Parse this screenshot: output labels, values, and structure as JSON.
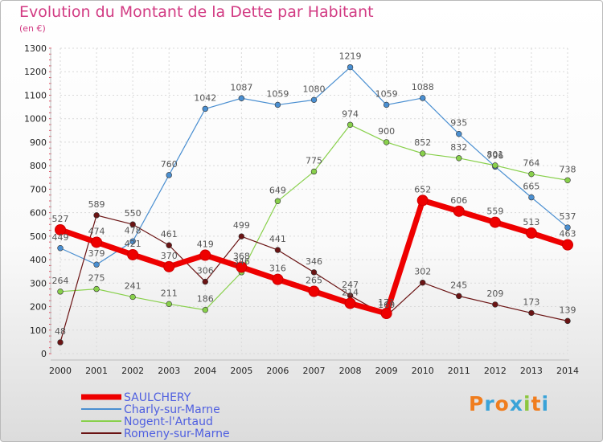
{
  "header": {
    "title": "Evolution du Montant de la Dette par Habitant",
    "unit": "(en €)"
  },
  "chart_data": {
    "type": "line",
    "x": [
      "2000",
      "2001",
      "2002",
      "2003",
      "2004",
      "2005",
      "2006",
      "2007",
      "2008",
      "2009",
      "2010",
      "2011",
      "2012",
      "2013",
      "2014"
    ],
    "ylim": [
      0,
      1300
    ],
    "yticks": [
      0,
      100,
      200,
      300,
      400,
      500,
      600,
      700,
      800,
      900,
      1000,
      1100,
      1200,
      1300
    ],
    "grid": true,
    "legend": "bottom-left",
    "series": [
      {
        "name": "SAULCHERY",
        "color": "#ee0000",
        "values": [
          527,
          474,
          421,
          370,
          419,
          368,
          316,
          265,
          214,
          171,
          652,
          606,
          559,
          513,
          463
        ]
      },
      {
        "name": "Charly-sur-Marne",
        "color": "#4a8fd1",
        "values": [
          449,
          379,
          478,
          760,
          1042,
          1087,
          1059,
          1080,
          1219,
          1059,
          1088,
          935,
          796,
          665,
          537
        ]
      },
      {
        "name": "Nogent-l'Artaud",
        "color": "#88d04b",
        "values": [
          264,
          275,
          241,
          211,
          186,
          346,
          649,
          775,
          974,
          900,
          852,
          832,
          801,
          764,
          738
        ]
      },
      {
        "name": "Romeny-sur-Marne",
        "color": "#6b1414",
        "values": [
          48,
          589,
          550,
          461,
          306,
          499,
          441,
          346,
          247,
          160,
          302,
          245,
          209,
          173,
          139
        ]
      }
    ]
  },
  "logo": {
    "letters": [
      "P",
      "r",
      "o",
      "x",
      "i",
      "t",
      "i"
    ],
    "colors": [
      "#f07d1e",
      "#3aa3d8",
      "#f07d1e",
      "#3aa3d8",
      "#8cc63f",
      "#f07d1e",
      "#3aa3d8"
    ]
  }
}
